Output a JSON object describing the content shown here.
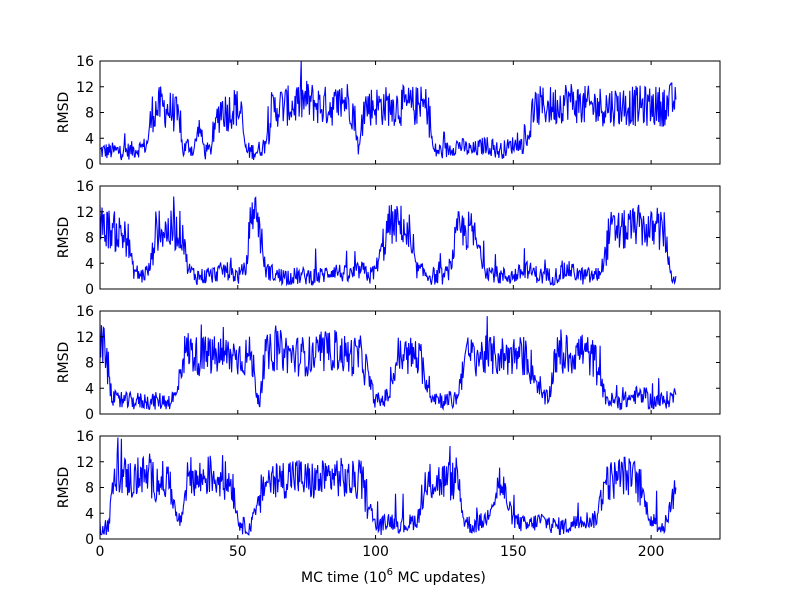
{
  "chart_data": {
    "type": "line",
    "xlabel": "MC time (10",
    "xlabel_sup": "6",
    "xlabel_tail": " MC updates)",
    "xlim": [
      0,
      225
    ],
    "xticks": [
      "0",
      "50",
      "100",
      "150",
      "200"
    ],
    "xtick_values": [
      0,
      50,
      100,
      150,
      200
    ],
    "line_color": "#0000ff",
    "grid": false,
    "panels": [
      {
        "ylabel": "RMSD",
        "ylim": [
          0,
          16
        ],
        "yticks": [
          "0",
          "4",
          "8",
          "12",
          "16"
        ],
        "ytick_values": [
          0,
          4,
          8,
          12,
          16
        ],
        "series": [
          {
            "x": [
              0,
              5,
              10,
              15,
              17,
              19,
              22,
              27,
              29,
              30,
              32,
              34,
              36,
              38,
              40,
              42,
              44,
              46,
              49,
              51,
              53,
              55,
              57,
              60,
              62,
              65,
              70,
              75,
              80,
              85,
              90,
              92,
              94,
              96,
              100,
              105,
              110,
              115,
              119,
              121,
              125,
              130,
              135,
              140,
              145,
              150,
              155,
              157,
              160,
              165,
              170,
              175,
              180,
              185,
              190,
              195,
              200,
              205,
              209
            ],
            "y": [
              2,
              2,
              2,
              2.5,
              3,
              8,
              9,
              8,
              6,
              2,
              3,
              2,
              6,
              2,
              2,
              6,
              9,
              8,
              9,
              8,
              2,
              2,
              2,
              3,
              8,
              9,
              9,
              10,
              9,
              9,
              10,
              8,
              2,
              9,
              9,
              9,
              9,
              9,
              9,
              2,
              2,
              3,
              2,
              3,
              2,
              3,
              3,
              8,
              9,
              9,
              10,
              9,
              9,
              9,
              9,
              9,
              9,
              9,
              10
            ]
          }
        ]
      },
      {
        "ylabel": "RMSD",
        "ylim": [
          0,
          16
        ],
        "yticks": [
          "0",
          "4",
          "8",
          "12",
          "16"
        ],
        "ytick_values": [
          0,
          4,
          8,
          12,
          16
        ],
        "series": [
          {
            "x": [
              0,
              5,
              10,
              12,
              15,
              18,
              20,
              25,
              30,
              32,
              35,
              40,
              45,
              50,
              53,
              55,
              57,
              60,
              65,
              70,
              75,
              80,
              85,
              90,
              95,
              98,
              100,
              105,
              110,
              115,
              120,
              125,
              127,
              130,
              133,
              135,
              140,
              145,
              150,
              155,
              160,
              165,
              170,
              175,
              180,
              182,
              185,
              190,
              195,
              200,
              205,
              207,
              209
            ],
            "y": [
              10,
              9,
              8,
              3,
              2,
              3,
              9,
              9,
              9,
              3,
              2,
              2,
              3,
              2,
              3,
              12,
              12,
              3,
              2,
              2,
              2,
              2,
              3,
              2,
              3,
              2,
              3,
              10,
              10,
              3,
              2,
              2,
              3,
              9,
              9,
              9,
              3,
              2,
              2,
              3,
              2,
              2,
              3,
              2,
              2,
              3,
              9,
              9,
              10,
              9,
              9,
              2,
              2
            ]
          }
        ]
      },
      {
        "ylabel": "RMSD",
        "ylim": [
          0,
          16
        ],
        "yticks": [
          "0",
          "4",
          "8",
          "12",
          "16"
        ],
        "ytick_values": [
          0,
          4,
          8,
          12,
          16
        ],
        "series": [
          {
            "x": [
              0,
              2,
              4,
              6,
              10,
              15,
              20,
              25,
              28,
              30,
              32,
              35,
              40,
              45,
              50,
              55,
              57,
              58,
              60,
              65,
              70,
              75,
              80,
              85,
              90,
              95,
              100,
              102,
              105,
              108,
              112,
              115,
              120,
              125,
              128,
              130,
              132,
              135,
              140,
              145,
              150,
              155,
              160,
              163,
              165,
              170,
              175,
              180,
              183,
              185,
              190,
              195,
              200,
              205,
              209
            ],
            "y": [
              11,
              10,
              3,
              2,
              2,
              2,
              2,
              2,
              3,
              9,
              10,
              9,
              9,
              9,
              9,
              9,
              3,
              2,
              9,
              10,
              9,
              9,
              9,
              10,
              9,
              9,
              2,
              2,
              3,
              9,
              9,
              9,
              3,
              2,
              2,
              3,
              9,
              9,
              9,
              9,
              9,
              9,
              3,
              2,
              9,
              9,
              10,
              8,
              3,
              2,
              2,
              3,
              2,
              2,
              3
            ]
          }
        ]
      },
      {
        "ylabel": "RMSD",
        "ylim": [
          0,
          16
        ],
        "yticks": [
          "0",
          "4",
          "8",
          "12",
          "16"
        ],
        "ytick_values": [
          0,
          4,
          8,
          12,
          16
        ],
        "series": [
          {
            "x": [
              0,
              3,
              5,
              8,
              12,
              15,
              20,
              25,
              28,
              30,
              32,
              35,
              40,
              45,
              48,
              50,
              52,
              55,
              60,
              65,
              70,
              75,
              80,
              85,
              90,
              95,
              100,
              102,
              105,
              110,
              115,
              120,
              125,
              130,
              132,
              135,
              140,
              145,
              150,
              155,
              160,
              165,
              170,
              175,
              180,
              183,
              185,
              190,
              195,
              200,
              203,
              205,
              209
            ],
            "y": [
              2,
              2,
              9,
              10,
              9,
              10,
              9,
              9,
              3,
              3,
              10,
              9,
              10,
              9,
              9,
              3,
              2,
              2,
              9,
              9,
              10,
              9,
              9,
              10,
              9,
              9,
              2,
              2,
              3,
              2,
              3,
              9,
              9,
              9,
              3,
              2,
              3,
              9,
              3,
              2,
              3,
              2,
              2,
              3,
              3,
              9,
              9,
              10,
              9,
              3,
              2,
              2,
              8
            ]
          }
        ]
      }
    ]
  }
}
